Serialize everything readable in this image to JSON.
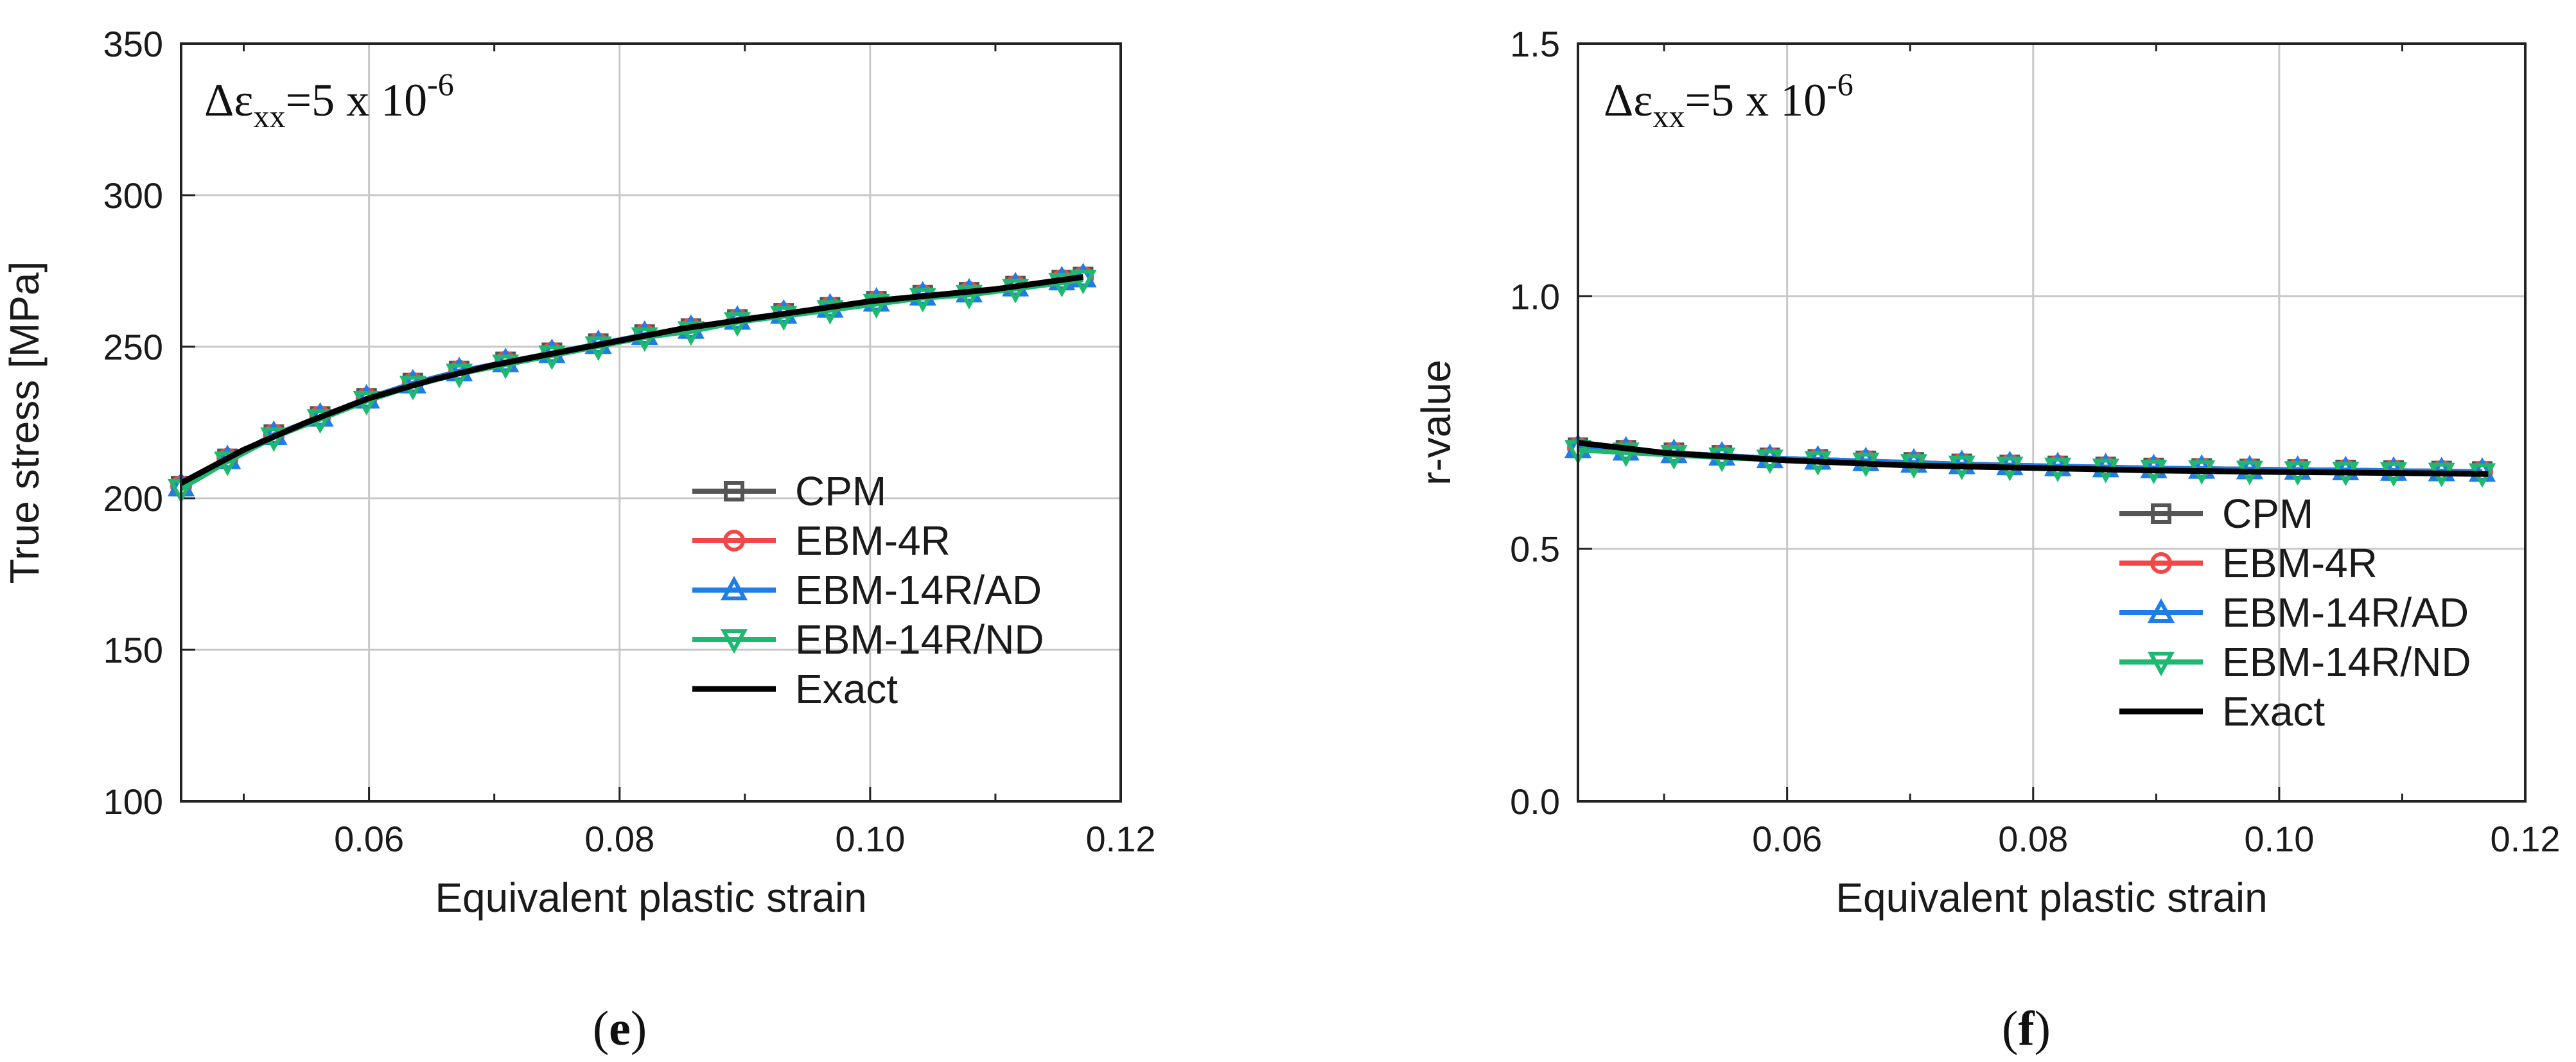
{
  "chart_data": [
    {
      "type": "line",
      "panel_label": "e",
      "caption_open": "(",
      "caption_close": ")",
      "annotation": {
        "delta": "Δε",
        "subscript": "xx",
        "text": "=5 x 10",
        "exponent": "-6"
      },
      "xlabel": "Equivalent plastic strain",
      "ylabel": "True stress [MPa]",
      "xlim": [
        0.045,
        0.12
      ],
      "ylim": [
        100,
        350
      ],
      "xticks": [
        0.06,
        0.08,
        0.1,
        0.12
      ],
      "xtick_labels": [
        "0.06",
        "0.08",
        "0.10",
        "0.12"
      ],
      "yticks": [
        100,
        150,
        200,
        250,
        300,
        350
      ],
      "ytick_labels": [
        "100",
        "150",
        "200",
        "250",
        "300",
        "350"
      ],
      "grid": true,
      "legend_position": "lower-right",
      "series": [
        {
          "name": "CPM",
          "color": "#555555",
          "marker": "square",
          "x": [
            0.045,
            0.0487,
            0.0524,
            0.0561,
            0.0598,
            0.0635,
            0.0672,
            0.0709,
            0.0746,
            0.0783,
            0.082,
            0.0857,
            0.0894,
            0.0931,
            0.0968,
            0.1005,
            0.1042,
            0.1079,
            0.1116,
            0.1153,
            0.117
          ],
          "y": [
            204,
            213,
            221,
            227,
            233,
            238,
            242,
            245,
            248,
            251,
            254,
            256,
            259,
            261,
            263,
            265,
            267,
            268,
            270,
            272,
            273
          ]
        },
        {
          "name": "EBM-4R",
          "color": "#f04848",
          "marker": "circle",
          "x": [
            0.045,
            0.0487,
            0.0524,
            0.0561,
            0.0598,
            0.0635,
            0.0672,
            0.0709,
            0.0746,
            0.0783,
            0.082,
            0.0857,
            0.0894,
            0.0931,
            0.0968,
            0.1005,
            0.1042,
            0.1079,
            0.1116,
            0.1153,
            0.117
          ],
          "y": [
            204,
            213,
            221,
            227,
            233,
            238,
            242,
            245,
            248,
            251,
            254,
            256,
            259,
            261,
            263,
            265,
            267,
            268,
            270,
            272,
            273
          ]
        },
        {
          "name": "EBM-14R/AD",
          "color": "#1f7de6",
          "marker": "triangle-up",
          "x": [
            0.045,
            0.0487,
            0.0524,
            0.0561,
            0.0598,
            0.0635,
            0.0672,
            0.0709,
            0.0746,
            0.0783,
            0.082,
            0.0857,
            0.0894,
            0.0931,
            0.0968,
            0.1005,
            0.1042,
            0.1079,
            0.1116,
            0.1153,
            0.117
          ],
          "y": [
            204,
            213,
            221,
            227,
            233,
            238,
            242,
            245,
            248,
            251,
            254,
            256,
            259,
            261,
            263,
            265,
            267,
            268,
            270,
            272,
            273
          ]
        },
        {
          "name": "EBM-14R/ND",
          "color": "#1fb870",
          "marker": "triangle-down",
          "x": [
            0.045,
            0.0487,
            0.0524,
            0.0561,
            0.0598,
            0.0635,
            0.0672,
            0.0709,
            0.0746,
            0.0783,
            0.082,
            0.0857,
            0.0894,
            0.0931,
            0.0968,
            0.1005,
            0.1042,
            0.1079,
            0.1116,
            0.1153,
            0.117
          ],
          "y": [
            203,
            212,
            220,
            226,
            232,
            237,
            241,
            244,
            247,
            250,
            253,
            255,
            258,
            260,
            262,
            264,
            266,
            267,
            269,
            271,
            272
          ]
        },
        {
          "name": "Exact",
          "color": "#000000",
          "marker": "none",
          "x": [
            0.045,
            0.05,
            0.055,
            0.06,
            0.065,
            0.07,
            0.075,
            0.08,
            0.085,
            0.09,
            0.095,
            0.1,
            0.105,
            0.11,
            0.117
          ],
          "y": [
            205,
            216,
            225,
            233,
            239,
            244,
            248,
            252,
            256,
            259,
            262,
            265,
            267,
            269,
            273
          ]
        }
      ]
    },
    {
      "type": "line",
      "panel_label": "f",
      "caption_open": "(",
      "caption_close": ")",
      "annotation": {
        "delta": "Δε",
        "subscript": "xx",
        "text": "=5 x 10",
        "exponent": "-6"
      },
      "xlabel": "Equivalent plastic strain",
      "ylabel": "r-value",
      "xlim": [
        0.043,
        0.12
      ],
      "ylim": [
        0.0,
        1.5
      ],
      "xticks": [
        0.06,
        0.08,
        0.1,
        0.12
      ],
      "xtick_labels": [
        "0.06",
        "0.08",
        "0.10",
        "0.12"
      ],
      "yticks": [
        0.0,
        0.5,
        1.0,
        1.5
      ],
      "ytick_labels": [
        "0.0",
        "0.5",
        "1.0",
        "1.5"
      ],
      "grid": true,
      "legend_position": "lower-right",
      "series": [
        {
          "name": "CPM",
          "color": "#555555",
          "marker": "square",
          "x": [
            0.043,
            0.0469,
            0.0508,
            0.0547,
            0.0586,
            0.0625,
            0.0664,
            0.0703,
            0.0742,
            0.0781,
            0.082,
            0.0859,
            0.0898,
            0.0937,
            0.0976,
            0.1015,
            0.1054,
            0.1093,
            0.1132,
            0.1165
          ],
          "y": [
            0.7,
            0.695,
            0.69,
            0.685,
            0.68,
            0.677,
            0.674,
            0.671,
            0.668,
            0.666,
            0.664,
            0.662,
            0.66,
            0.659,
            0.658,
            0.657,
            0.656,
            0.655,
            0.654,
            0.653
          ]
        },
        {
          "name": "EBM-4R",
          "color": "#f04848",
          "marker": "circle",
          "x": [
            0.043,
            0.0469,
            0.0508,
            0.0547,
            0.0586,
            0.0625,
            0.0664,
            0.0703,
            0.0742,
            0.0781,
            0.082,
            0.0859,
            0.0898,
            0.0937,
            0.0976,
            0.1015,
            0.1054,
            0.1093,
            0.1132,
            0.1165
          ],
          "y": [
            0.7,
            0.695,
            0.69,
            0.685,
            0.68,
            0.677,
            0.674,
            0.671,
            0.668,
            0.666,
            0.664,
            0.662,
            0.66,
            0.659,
            0.658,
            0.657,
            0.656,
            0.655,
            0.654,
            0.653
          ]
        },
        {
          "name": "EBM-14R/AD",
          "color": "#1f7de6",
          "marker": "triangle-up",
          "x": [
            0.043,
            0.0469,
            0.0508,
            0.0547,
            0.0586,
            0.0625,
            0.0664,
            0.0703,
            0.0742,
            0.0781,
            0.082,
            0.0859,
            0.0898,
            0.0937,
            0.0976,
            0.1015,
            0.1054,
            0.1093,
            0.1132,
            0.1165
          ],
          "y": [
            0.7,
            0.695,
            0.69,
            0.685,
            0.68,
            0.677,
            0.674,
            0.671,
            0.668,
            0.666,
            0.664,
            0.662,
            0.66,
            0.659,
            0.658,
            0.657,
            0.656,
            0.655,
            0.654,
            0.653
          ]
        },
        {
          "name": "EBM-14R/ND",
          "color": "#1fb870",
          "marker": "triangle-down",
          "x": [
            0.043,
            0.0469,
            0.0508,
            0.0547,
            0.0586,
            0.0625,
            0.0664,
            0.0703,
            0.0742,
            0.0781,
            0.082,
            0.0859,
            0.0898,
            0.0937,
            0.0976,
            0.1015,
            0.1054,
            0.1093,
            0.1132,
            0.1165
          ],
          "y": [
            0.695,
            0.69,
            0.685,
            0.68,
            0.676,
            0.673,
            0.67,
            0.667,
            0.664,
            0.662,
            0.66,
            0.658,
            0.656,
            0.655,
            0.654,
            0.653,
            0.652,
            0.651,
            0.65,
            0.649
          ]
        },
        {
          "name": "Exact",
          "color": "#000000",
          "marker": "none",
          "x": [
            0.043,
            0.05,
            0.06,
            0.07,
            0.08,
            0.09,
            0.1,
            0.11,
            0.117
          ],
          "y": [
            0.71,
            0.69,
            0.675,
            0.665,
            0.66,
            0.655,
            0.652,
            0.65,
            0.648
          ]
        }
      ]
    }
  ]
}
